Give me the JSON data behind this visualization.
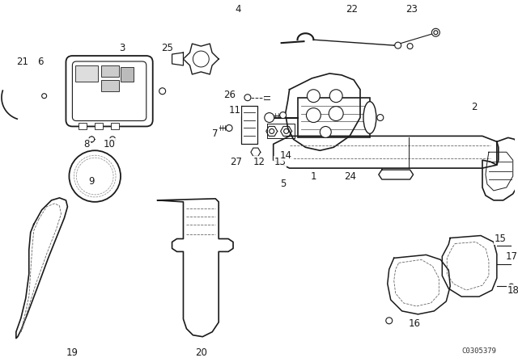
{
  "bg_color": "#ffffff",
  "line_color": "#1a1a1a",
  "fig_width": 6.4,
  "fig_height": 4.48,
  "dpi": 100,
  "diagram_code_text": "C0305379",
  "diagram_code_fontsize": 6.5
}
